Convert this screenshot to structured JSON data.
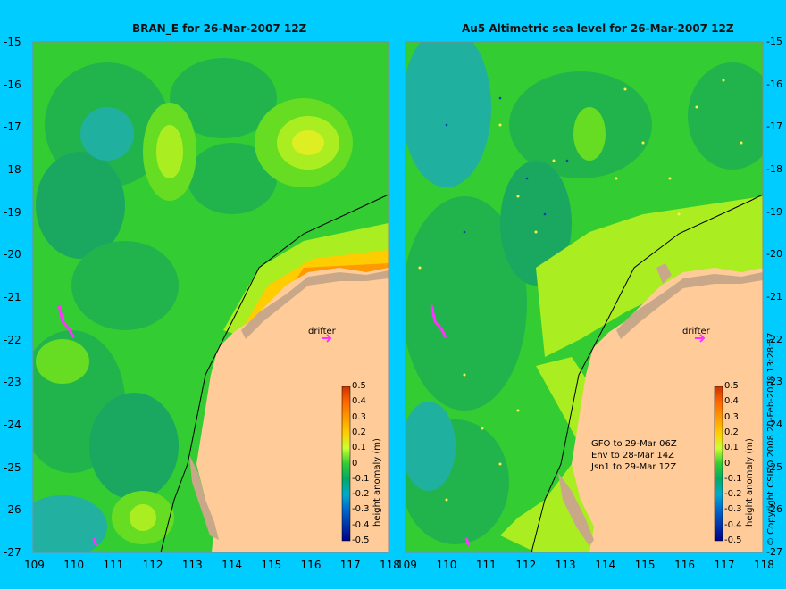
{
  "panels": [
    {
      "title": "BRAN_E for 26-Mar-2007 12Z",
      "drifter_label": "drifter"
    },
    {
      "title": "Au5 Altimetric sea level  for 26-Mar-2007 12Z",
      "drifter_label": "drifter",
      "notes": [
        "GFO to 29-Mar 06Z",
        "Env to 28-Mar 14Z",
        "Jsn1 to 29-Mar 12Z"
      ]
    }
  ],
  "axes": {
    "y_ticks": [
      "-15",
      "-16",
      "-17",
      "-18",
      "-19",
      "-20",
      "-21",
      "-22",
      "-23",
      "-24",
      "-25",
      "-26",
      "-27"
    ],
    "x_ticks": [
      "109",
      "110",
      "111",
      "112",
      "113",
      "114",
      "115",
      "116",
      "117",
      "118"
    ]
  },
  "colorbar": {
    "label": "height anomaly (m)",
    "ticks": [
      "0.5",
      "0.4",
      "0.3",
      "0.2",
      "0.1",
      "0",
      "-0.1",
      "-0.2",
      "-0.3",
      "-0.4",
      "-0.5"
    ]
  },
  "credit": "© Copyright CSIRO 2008   20-Feb-2008 13:28:57",
  "colors": {
    "background": "#00ccff",
    "land": "#ffcc99",
    "reef": "#c8a888",
    "drifter": "#ff33ff"
  }
}
